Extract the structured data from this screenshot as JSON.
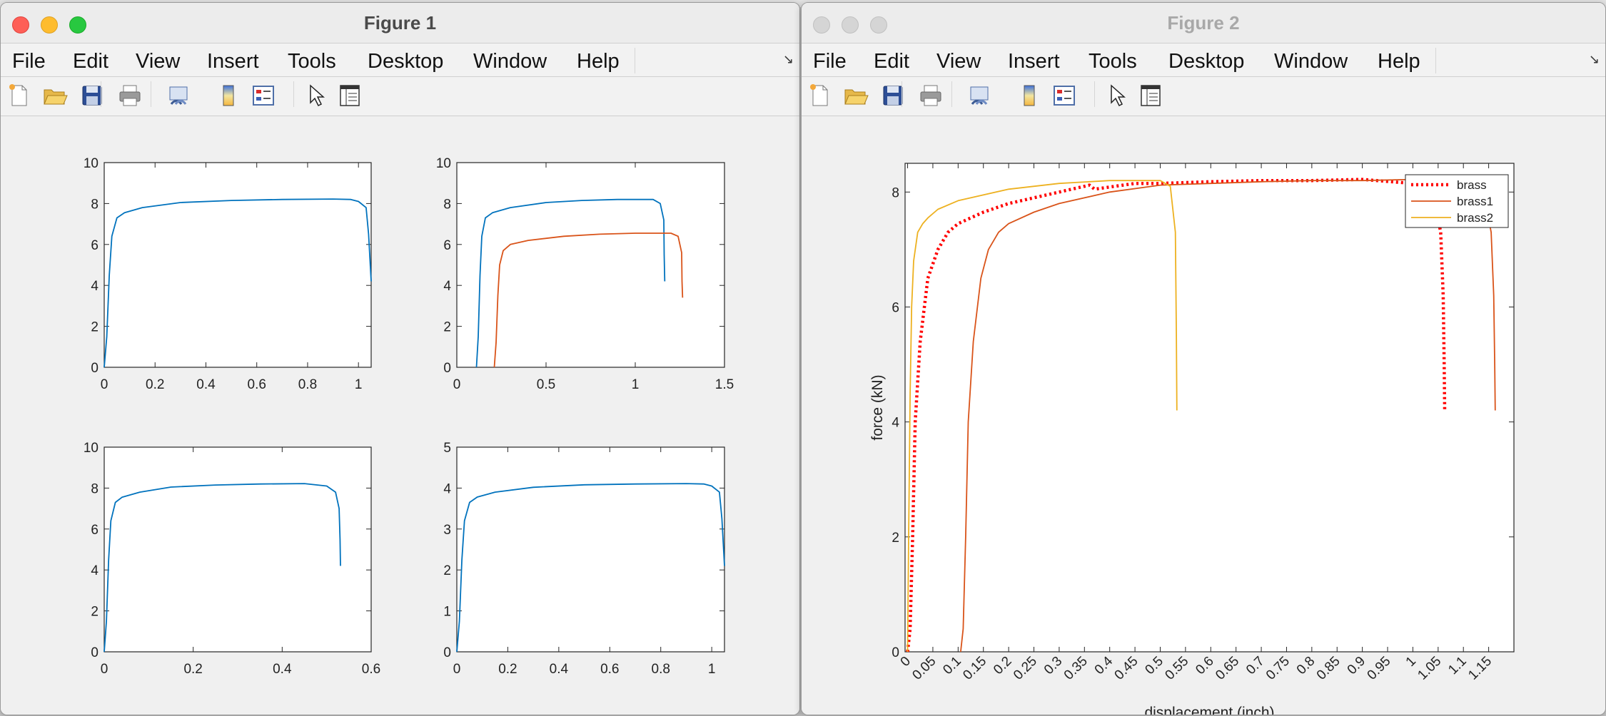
{
  "windows": [
    {
      "title": "Figure 1",
      "menu": [
        "File",
        "Edit",
        "View",
        "Insert",
        "Tools",
        "Desktop",
        "Window",
        "Help"
      ],
      "toolbar_icons": [
        "new-figure-icon",
        "open-file-icon",
        "save-icon",
        "print-icon",
        "link-plot-icon",
        "insert-colorbar-icon",
        "insert-legend-icon",
        "edit-plot-arrow-icon",
        "property-inspector-icon"
      ]
    },
    {
      "title": "Figure 2",
      "menu": [
        "File",
        "Edit",
        "View",
        "Insert",
        "Tools",
        "Desktop",
        "Window",
        "Help"
      ],
      "toolbar_icons": [
        "new-figure-icon",
        "open-file-icon",
        "save-icon",
        "print-icon",
        "link-plot-icon",
        "insert-colorbar-icon",
        "insert-legend-icon",
        "edit-plot-arrow-icon",
        "property-inspector-icon"
      ]
    }
  ],
  "colors": {
    "blue": "#0072bd",
    "orange": "#d95319",
    "yellow": "#edb120",
    "red": "#ff0000"
  },
  "chart_data": [
    {
      "type": "line",
      "figure": "Figure 1",
      "subplot": 1,
      "xlim": [
        0,
        1.05
      ],
      "ylim": [
        0,
        10
      ],
      "xticks": [
        "0",
        "0.2",
        "0.4",
        "0.6",
        "0.8",
        "1"
      ],
      "yticks": [
        "0",
        "2",
        "4",
        "6",
        "8",
        "10"
      ],
      "series": [
        {
          "color": "blue",
          "x": [
            0,
            0.01,
            0.02,
            0.03,
            0.05,
            0.08,
            0.15,
            0.3,
            0.5,
            0.7,
            0.9,
            0.97,
            1.0,
            1.03,
            1.04,
            1.05
          ],
          "y": [
            0,
            1.5,
            4.5,
            6.4,
            7.3,
            7.55,
            7.8,
            8.05,
            8.15,
            8.2,
            8.22,
            8.2,
            8.1,
            7.8,
            6.5,
            4.2
          ]
        }
      ]
    },
    {
      "type": "line",
      "figure": "Figure 1",
      "subplot": 2,
      "xlim": [
        0,
        1.5
      ],
      "ylim": [
        0,
        10
      ],
      "xticks": [
        "0",
        "0.5",
        "1",
        "1.5"
      ],
      "yticks": [
        "0",
        "2",
        "4",
        "6",
        "8",
        "10"
      ],
      "series": [
        {
          "color": "blue",
          "x": [
            0.11,
            0.12,
            0.13,
            0.14,
            0.16,
            0.2,
            0.3,
            0.5,
            0.7,
            0.9,
            1.1,
            1.14,
            1.16,
            1.162,
            1.165
          ],
          "y": [
            0,
            1.5,
            4.5,
            6.4,
            7.3,
            7.55,
            7.8,
            8.05,
            8.15,
            8.2,
            8.2,
            8.0,
            7.2,
            5.5,
            4.2
          ]
        },
        {
          "color": "orange",
          "x": [
            0.21,
            0.22,
            0.23,
            0.24,
            0.26,
            0.3,
            0.4,
            0.6,
            0.8,
            1.0,
            1.2,
            1.24,
            1.26,
            1.262,
            1.265
          ],
          "y": [
            0,
            1.2,
            3.5,
            5.0,
            5.7,
            6.0,
            6.2,
            6.4,
            6.5,
            6.55,
            6.55,
            6.4,
            5.6,
            4.2,
            3.4
          ]
        }
      ]
    },
    {
      "type": "line",
      "figure": "Figure 1",
      "subplot": 3,
      "xlim": [
        0,
        0.6
      ],
      "ylim": [
        0,
        10
      ],
      "xticks": [
        "0",
        "0.2",
        "0.4",
        "0.6"
      ],
      "yticks": [
        "0",
        "2",
        "4",
        "6",
        "8",
        "10"
      ],
      "series": [
        {
          "color": "blue",
          "x": [
            0,
            0.005,
            0.01,
            0.015,
            0.025,
            0.04,
            0.08,
            0.15,
            0.25,
            0.35,
            0.45,
            0.5,
            0.52,
            0.528,
            0.53,
            0.531
          ],
          "y": [
            0,
            1.5,
            4.5,
            6.4,
            7.3,
            7.55,
            7.8,
            8.05,
            8.15,
            8.2,
            8.22,
            8.1,
            7.8,
            7.0,
            5.5,
            4.2
          ]
        }
      ]
    },
    {
      "type": "line",
      "figure": "Figure 1",
      "subplot": 4,
      "xlim": [
        0,
        1.05
      ],
      "ylim": [
        0,
        5
      ],
      "xticks": [
        "0",
        "0.2",
        "0.4",
        "0.6",
        "0.8",
        "1"
      ],
      "yticks": [
        "0",
        "1",
        "2",
        "3",
        "4",
        "5"
      ],
      "series": [
        {
          "color": "blue",
          "x": [
            0,
            0.01,
            0.02,
            0.03,
            0.05,
            0.08,
            0.15,
            0.3,
            0.5,
            0.7,
            0.9,
            0.97,
            1.0,
            1.03,
            1.04,
            1.05
          ],
          "y": [
            0,
            0.75,
            2.25,
            3.2,
            3.65,
            3.78,
            3.9,
            4.02,
            4.08,
            4.1,
            4.11,
            4.1,
            4.05,
            3.9,
            3.25,
            2.1
          ]
        }
      ]
    },
    {
      "type": "line",
      "figure": "Figure 2",
      "xlim": [
        -0.005,
        1.2
      ],
      "ylim": [
        0,
        8.5
      ],
      "xlabel": "displacement (inch)",
      "ylabel": "force (kN)",
      "xticks": [
        "0",
        "0.05",
        "0.1",
        "0.15",
        "0.2",
        "0.25",
        "0.3",
        "0.35",
        "0.4",
        "0.45",
        "0.5",
        "0.55",
        "0.6",
        "0.65",
        "0.7",
        "0.75",
        "0.8",
        "0.85",
        "0.9",
        "0.95",
        "1",
        "1.05",
        "1.1",
        "1.15"
      ],
      "yticks": [
        "0",
        "2",
        "4",
        "6",
        "8"
      ],
      "legend_position": "top-right",
      "series": [
        {
          "name": "brass",
          "color": "red",
          "style": "dotted",
          "x": [
            0,
            0.005,
            0.01,
            0.015,
            0.025,
            0.04,
            0.06,
            0.08,
            0.1,
            0.15,
            0.2,
            0.3,
            0.36,
            0.37,
            0.45,
            0.5,
            0.6,
            0.7,
            0.8,
            0.9,
            1.0,
            1.04,
            1.055,
            1.06,
            1.062,
            1.063
          ],
          "y": [
            0,
            0.4,
            2.0,
            4.0,
            5.4,
            6.5,
            7.0,
            7.3,
            7.45,
            7.65,
            7.8,
            8.0,
            8.12,
            8.05,
            8.15,
            8.15,
            8.18,
            8.2,
            8.2,
            8.22,
            8.15,
            8.0,
            7.3,
            6.2,
            5.0,
            4.2
          ]
        },
        {
          "name": "brass1",
          "color": "orange",
          "style": "solid",
          "x": [
            0.105,
            0.11,
            0.115,
            0.12,
            0.13,
            0.145,
            0.16,
            0.18,
            0.2,
            0.25,
            0.3,
            0.4,
            0.5,
            0.6,
            0.7,
            0.8,
            0.9,
            1.0,
            1.1,
            1.14,
            1.155,
            1.16,
            1.162,
            1.163
          ],
          "y": [
            0,
            0.4,
            2.0,
            4.0,
            5.4,
            6.5,
            7.0,
            7.3,
            7.45,
            7.65,
            7.8,
            8.0,
            8.12,
            8.15,
            8.18,
            8.2,
            8.2,
            8.22,
            8.15,
            8.0,
            7.3,
            6.2,
            5.0,
            4.2
          ]
        },
        {
          "name": "brass2",
          "color": "yellow",
          "style": "solid",
          "x": [
            0,
            0.002,
            0.005,
            0.008,
            0.012,
            0.02,
            0.03,
            0.04,
            0.06,
            0.1,
            0.2,
            0.3,
            0.4,
            0.5,
            0.52,
            0.53,
            0.532,
            0.533
          ],
          "y": [
            0,
            2.0,
            4.5,
            6.0,
            6.8,
            7.3,
            7.45,
            7.55,
            7.7,
            7.85,
            8.05,
            8.15,
            8.2,
            8.2,
            8.1,
            7.3,
            5.5,
            4.2
          ]
        }
      ]
    }
  ]
}
